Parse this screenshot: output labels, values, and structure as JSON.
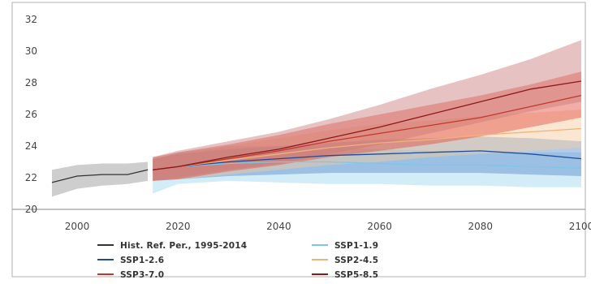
{
  "chart_data": {
    "type": "line",
    "title": "",
    "xlabel": "",
    "ylabel": "",
    "xlim": [
      1995,
      2100
    ],
    "ylim": [
      20,
      32
    ],
    "x_ticks": [
      2000,
      2020,
      2040,
      2060,
      2080,
      2100
    ],
    "y_ticks": [
      20,
      22,
      24,
      26,
      28,
      30,
      32
    ],
    "grid": false,
    "legend_position": "bottom",
    "series": [
      {
        "name": "Hist. Ref. Per., 1995-2014",
        "color": "#333333",
        "band_color": "#bdbdbd",
        "x": [
          1995,
          2000,
          2005,
          2010,
          2014
        ],
        "values": [
          21.7,
          22.1,
          22.2,
          22.2,
          22.5
        ],
        "lower": [
          20.8,
          21.3,
          21.5,
          21.6,
          21.8
        ],
        "upper": [
          22.5,
          22.8,
          22.9,
          22.9,
          23.0
        ]
      },
      {
        "name": "SSP1-1.9",
        "color": "#7fc6e6",
        "band_color": "#9bd8f0",
        "x": [
          2015,
          2020,
          2030,
          2040,
          2050,
          2060,
          2070,
          2080,
          2090,
          2100
        ],
        "values": [
          22.5,
          22.7,
          22.9,
          23.0,
          23.0,
          22.9,
          22.8,
          22.8,
          22.7,
          22.6
        ],
        "lower": [
          21.0,
          21.6,
          21.8,
          21.7,
          21.6,
          21.6,
          21.5,
          21.5,
          21.4,
          21.4
        ],
        "upper": [
          23.1,
          23.6,
          24.0,
          24.0,
          23.9,
          23.8,
          23.7,
          23.7,
          23.6,
          23.6
        ]
      },
      {
        "name": "SSP1-2.6",
        "color": "#1f4e99",
        "band_color": "#5b8ac9",
        "x": [
          2015,
          2020,
          2030,
          2040,
          2050,
          2060,
          2070,
          2080,
          2090,
          2100
        ],
        "values": [
          22.5,
          22.7,
          23.0,
          23.2,
          23.4,
          23.5,
          23.6,
          23.7,
          23.5,
          23.2
        ],
        "lower": [
          21.8,
          21.9,
          22.1,
          22.2,
          22.3,
          22.3,
          22.3,
          22.3,
          22.2,
          22.1
        ],
        "upper": [
          23.2,
          23.5,
          23.8,
          24.0,
          24.2,
          24.4,
          24.5,
          24.6,
          24.5,
          24.3
        ]
      },
      {
        "name": "SSP2-4.5",
        "color": "#f0b27a",
        "band_color": "#f7c99a",
        "x": [
          2015,
          2020,
          2030,
          2040,
          2050,
          2060,
          2070,
          2080,
          2090,
          2100
        ],
        "values": [
          22.5,
          22.7,
          23.1,
          23.5,
          23.9,
          24.2,
          24.4,
          24.7,
          24.9,
          25.1
        ],
        "lower": [
          21.8,
          21.9,
          22.2,
          22.5,
          22.8,
          23.0,
          23.3,
          23.5,
          23.7,
          23.9
        ],
        "upper": [
          23.2,
          23.5,
          24.0,
          24.5,
          25.0,
          25.4,
          25.6,
          25.9,
          26.1,
          26.3
        ]
      },
      {
        "name": "SSP3-7.0",
        "color": "#c0392b",
        "band_color": "#e24a3b",
        "x": [
          2015,
          2020,
          2030,
          2040,
          2050,
          2060,
          2070,
          2080,
          2090,
          2100
        ],
        "values": [
          22.5,
          22.7,
          23.2,
          23.7,
          24.3,
          24.8,
          25.3,
          25.8,
          26.5,
          27.2
        ],
        "lower": [
          21.8,
          21.9,
          22.4,
          22.8,
          23.3,
          23.7,
          24.1,
          24.6,
          25.2,
          25.8
        ],
        "upper": [
          23.3,
          23.6,
          24.1,
          24.7,
          25.4,
          26.0,
          26.6,
          27.2,
          27.9,
          28.7
        ]
      },
      {
        "name": "SSP5-8.5",
        "color": "#8b1a1a",
        "band_color": "#c97878",
        "x": [
          2015,
          2020,
          2030,
          2040,
          2050,
          2060,
          2070,
          2080,
          2090,
          2100
        ],
        "values": [
          22.5,
          22.7,
          23.3,
          23.8,
          24.5,
          25.2,
          26.0,
          26.8,
          27.6,
          28.1
        ],
        "lower": [
          21.8,
          22.0,
          22.5,
          22.9,
          23.5,
          24.1,
          24.8,
          25.5,
          26.2,
          26.8
        ],
        "upper": [
          23.3,
          23.7,
          24.3,
          24.9,
          25.7,
          26.6,
          27.6,
          28.5,
          29.5,
          30.7
        ]
      }
    ]
  }
}
